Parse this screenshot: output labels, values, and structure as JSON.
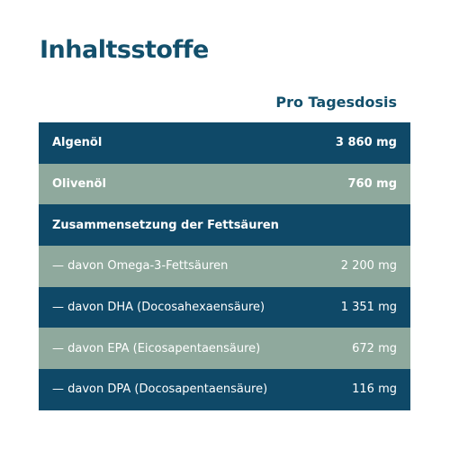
{
  "header": {
    "title": "Inhaltsstoffe"
  },
  "table": {
    "column_header": "Pro Tagesdosis",
    "rows": [
      [
        "Algenöl",
        "3 860 mg"
      ],
      [
        "Olivenöl",
        "760 mg"
      ],
      [
        "Zusammensetzung der Fettsäuren"
      ],
      [
        "— davon Omega-3-Fettsäuren",
        "2 200 mg"
      ],
      [
        "— davon DHA (Docosahexaensäure)",
        "1 351 mg"
      ],
      [
        "— davon EPA (Eicosapentaensäure)",
        "672 mg"
      ],
      [
        "— davon DPA (Docosapentaensäure)",
        "116 mg"
      ]
    ]
  }
}
